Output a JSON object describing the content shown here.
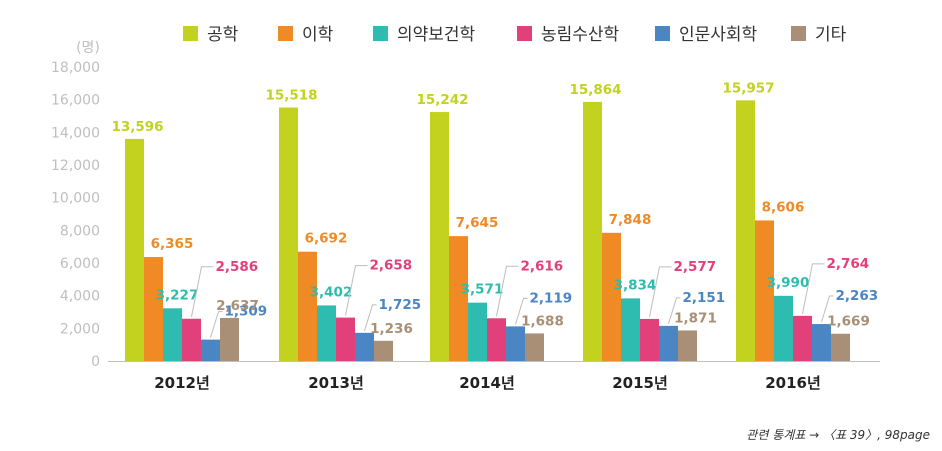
{
  "footnote": "관련 통계표 → 〈표 39〉, 98page",
  "chart_data": {
    "type": "bar",
    "unit_label": "(명)",
    "categories": [
      "2012년",
      "2013년",
      "2014년",
      "2015년",
      "2016년"
    ],
    "yticks": [
      "0",
      "2,000",
      "4,000",
      "6,000",
      "8,000",
      "10,000",
      "12,000",
      "14,000",
      "16,000",
      "18,000"
    ],
    "ylim": [
      0,
      18000
    ],
    "grid": false,
    "legend_position": "top-right",
    "series": [
      {
        "name": "공학",
        "color": "#c2d21f",
        "values": [
          13596,
          15518,
          15242,
          15864,
          15957
        ],
        "labels": [
          "13,596",
          "15,518",
          "15,242",
          "15,864",
          "15,957"
        ]
      },
      {
        "name": "이학",
        "color": "#f08a24",
        "values": [
          6365,
          6692,
          7645,
          7848,
          8606
        ],
        "labels": [
          "6,365",
          "6,692",
          "7,645",
          "7,848",
          "8,606"
        ]
      },
      {
        "name": "의약보건학",
        "color": "#2fbcb0",
        "values": [
          3227,
          3402,
          3571,
          3834,
          3990
        ],
        "labels": [
          "3,227",
          "3,402",
          "3,571",
          "3,834",
          "3,990"
        ]
      },
      {
        "name": "농림수산학",
        "color": "#e2407a",
        "values": [
          2586,
          2658,
          2616,
          2577,
          2764
        ],
        "labels": [
          "2,586",
          "2,658",
          "2,616",
          "2,577",
          "2,764"
        ]
      },
      {
        "name": "인문사회학",
        "color": "#4b86c4",
        "values": [
          1309,
          1725,
          2119,
          2151,
          2263
        ],
        "labels": [
          "1,309",
          "1,725",
          "2,119",
          "2,151",
          "2,263"
        ]
      },
      {
        "name": "기타",
        "color": "#a88f76",
        "values": [
          2637,
          1236,
          1688,
          1871,
          1669
        ],
        "labels": [
          "2,637",
          "1,236",
          "1,688",
          "1,871",
          "1,669"
        ]
      }
    ]
  }
}
